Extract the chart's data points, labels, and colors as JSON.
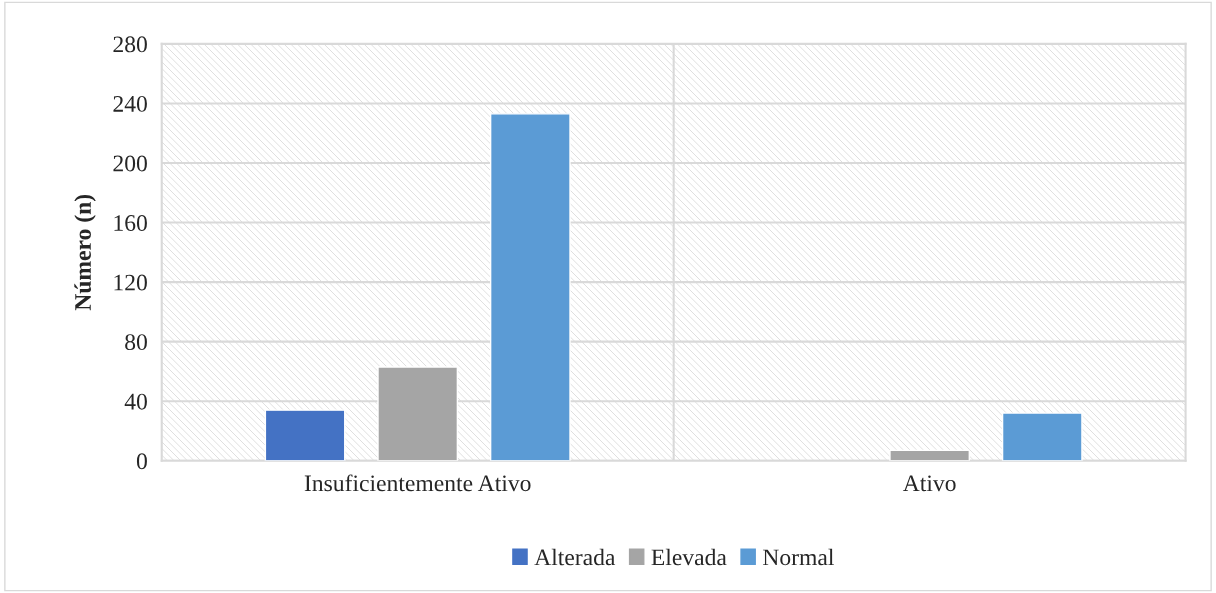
{
  "chart_data": {
    "type": "bar",
    "ylabel": "Número (n)",
    "categories": [
      "Insuficientemente Ativo",
      "Ativo"
    ],
    "series": [
      {
        "name": "Alterada",
        "color": "#4472c4",
        "values": [
          34,
          null
        ]
      },
      {
        "name": "Elevada",
        "color": "#a5a5a5",
        "values": [
          63,
          7
        ]
      },
      {
        "name": "Normal",
        "color": "#5b9bd5",
        "values": [
          233,
          32
        ]
      }
    ],
    "ylim": [
      0,
      280
    ],
    "yticks": [
      0,
      40,
      80,
      120,
      160,
      200,
      240,
      280
    ],
    "grid": "y",
    "legend": "bottom"
  }
}
